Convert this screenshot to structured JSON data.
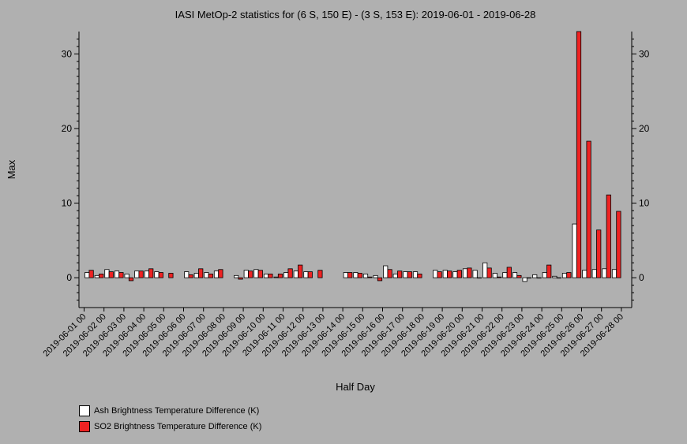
{
  "chart_data": {
    "type": "bar",
    "title": "IASI MetOp-2 statistics for (6 S, 150 E) - (3 S, 153 E): 2019-06-01 - 2019-06-28",
    "xlabel": "Half Day",
    "ylabel": "Max",
    "ylim": [
      -4,
      33
    ],
    "yticks": [
      0,
      10,
      20,
      30
    ],
    "xticks": [
      "2019-06-01 00",
      "2019-06-02 00",
      "2019-06-03 00",
      "2019-06-04 00",
      "2019-06-05 00",
      "2019-06-06 00",
      "2019-06-07 00",
      "2019-06-08 00",
      "2019-06-09 00",
      "2019-06-10 00",
      "2019-06-11 00",
      "2019-06-12 00",
      "2019-06-13 00",
      "2019-06-14 00",
      "2019-06-15 00",
      "2019-06-16 00",
      "2019-06-17 00",
      "2019-06-18 00",
      "2019-06-19 00",
      "2019-06-20 00",
      "2019-06-21 00",
      "2019-06-22 00",
      "2019-06-23 00",
      "2019-06-24 00",
      "2019-06-25 00",
      "2019-06-26 00",
      "2019-06-27 00",
      "2019-06-28 00"
    ],
    "series": [
      {
        "name": "Ash Brightness Temperature Difference (K)",
        "color": "#ffffff",
        "values": [
          0.7,
          0.3,
          1.1,
          0.9,
          0.5,
          0.9,
          0.9,
          0.8,
          null,
          null,
          0.8,
          0.6,
          0.7,
          0.9,
          null,
          0.3,
          1.0,
          1.1,
          0.5,
          0.1,
          0.7,
          0.9,
          0.8,
          null,
          null,
          null,
          0.7,
          0.7,
          0.5,
          0.3,
          1.6,
          0.5,
          0.8,
          0.8,
          null,
          1.0,
          1.0,
          0.8,
          1.2,
          1.0,
          2.0,
          0.6,
          0.7,
          0.7,
          -0.5,
          0.4,
          0.7,
          0.2,
          0.6,
          7.2,
          1.0,
          1.1,
          1.2,
          1.1
        ]
      },
      {
        "name": "SO2 Brightness Temperature Difference (K)",
        "color": "#ee2222",
        "values": [
          1.0,
          0.5,
          0.8,
          0.7,
          -0.4,
          0.9,
          1.2,
          0.7,
          0.6,
          null,
          0.4,
          1.2,
          0.5,
          1.1,
          null,
          -0.2,
          0.9,
          1.0,
          0.5,
          0.5,
          1.2,
          1.7,
          0.8,
          1.0,
          null,
          null,
          0.7,
          0.6,
          0.1,
          -0.4,
          1.1,
          0.9,
          0.8,
          0.5,
          null,
          0.8,
          0.9,
          1.0,
          1.3,
          0.0,
          1.3,
          0.1,
          1.4,
          0.3,
          0.0,
          0.0,
          1.7,
          0.0,
          0.7,
          33.0,
          18.3,
          6.4,
          11.1,
          8.9
        ]
      }
    ],
    "legend_position": "bottom-left",
    "grid": false
  }
}
